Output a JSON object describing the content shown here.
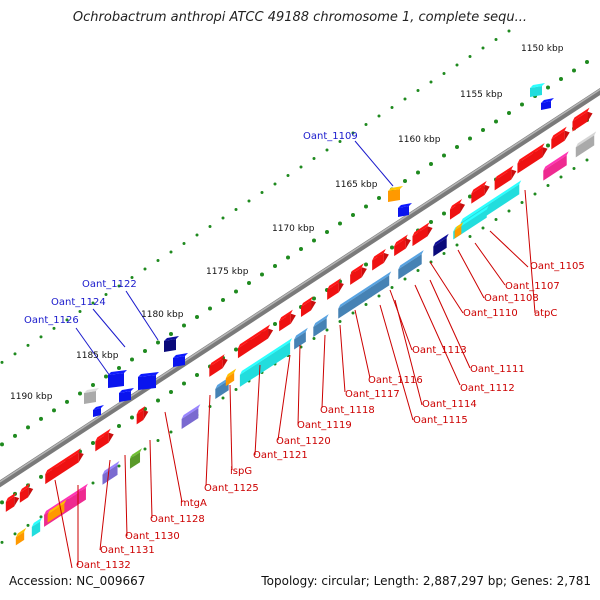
{
  "title": "Ochrobactrum anthropi ATCC 49188 chromosome 1, complete sequ...",
  "footer": {
    "accession": "Accession: NC_009667",
    "summary": "Topology: circular; Length: 2,887,297 bp; Genes: 2,781"
  },
  "colors": {
    "backbone": "#7a7a7a",
    "ruler_dots": "#1f8a1f",
    "top_labels": "#1a1acc",
    "bottom_labels": "#cc0000",
    "cds_red": "#ee1111",
    "cyan": "#22dddd",
    "steel_blue": "#4682b4",
    "navy": "#0a0a7a",
    "violet": "#7a6ad0",
    "orange": "#ff9900",
    "magenta": "#ee2a90",
    "olive_green": "#5a9a2a",
    "gray": "#aaaaaa",
    "blue": "#0a14ee"
  },
  "scale_labels": [
    "1150 kbp",
    "1155 kbp",
    "1160 kbp",
    "1165 kbp",
    "1170 kbp",
    "1175 kbp",
    "1180 kbp",
    "1185 kbp",
    "1190 kbp"
  ],
  "top_gene_labels": [
    "Oant_1109",
    "Oant_1122",
    "Oant_1124",
    "Oant_1126"
  ],
  "bottom_gene_labels": [
    "Oant_1105",
    "Oant_1107",
    "Oant_1108",
    "atpC",
    "Oant_1110",
    "Oant_1111",
    "Oant_1112",
    "Oant_1113",
    "Oant_1114",
    "Oant_1115",
    "Oant_1116",
    "Oant_1117",
    "Oant_1118",
    "Oant_1119",
    "Oant_1120",
    "Oant_1121",
    "ispG",
    "Oant_1125",
    "mtgA",
    "Oant_1128",
    "Oant_1130",
    "Oant_1131",
    "Oant_1132"
  ]
}
